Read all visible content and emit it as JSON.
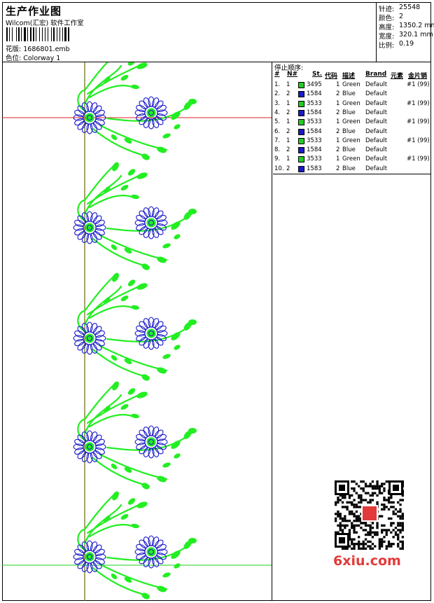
{
  "header": {
    "title": "生产作业图",
    "subtitle": "Wilcom(汇宏) 软件工作室",
    "design_label": "花版:",
    "design_value": "1686801.emb",
    "colorway_label": "色位:",
    "colorway_value": "Colorway 1"
  },
  "stats": [
    {
      "label": "针迹:",
      "value": "25548"
    },
    {
      "label": "颜色:",
      "value": "2"
    },
    {
      "label": "高度:",
      "value": "1350.2 mm"
    },
    {
      "label": "宽度:",
      "value": "320.1 mm"
    },
    {
      "label": "比例:",
      "value": "0.19"
    }
  ],
  "sequence": {
    "heading": "停止顺序:",
    "columns": [
      "#",
      "N#",
      "St.",
      "代码",
      "描述",
      "Brand",
      "元素",
      "金片销"
    ],
    "rows": [
      {
        "idx": "1.",
        "n": "1",
        "code": "3495",
        "st": "1",
        "desc": "Green",
        "brand": "Default",
        "extra": "#1 (99)",
        "color": "#22cc22"
      },
      {
        "idx": "2.",
        "n": "2",
        "code": "1584",
        "st": "2",
        "desc": "Blue",
        "brand": "Default",
        "extra": "",
        "color": "#1a1acc"
      },
      {
        "idx": "3.",
        "n": "1",
        "code": "3533",
        "st": "1",
        "desc": "Green",
        "brand": "Default",
        "extra": "#1 (99)",
        "color": "#22cc22"
      },
      {
        "idx": "4.",
        "n": "2",
        "code": "1584",
        "st": "2",
        "desc": "Blue",
        "brand": "Default",
        "extra": "",
        "color": "#1a1acc"
      },
      {
        "idx": "5.",
        "n": "1",
        "code": "3533",
        "st": "1",
        "desc": "Green",
        "brand": "Default",
        "extra": "#1 (99)",
        "color": "#22cc22"
      },
      {
        "idx": "6.",
        "n": "2",
        "code": "1584",
        "st": "2",
        "desc": "Blue",
        "brand": "Default",
        "extra": "",
        "color": "#1a1acc"
      },
      {
        "idx": "7.",
        "n": "1",
        "code": "3533",
        "st": "1",
        "desc": "Green",
        "brand": "Default",
        "extra": "#1 (99)",
        "color": "#22cc22"
      },
      {
        "idx": "8.",
        "n": "2",
        "code": "1584",
        "st": "2",
        "desc": "Blue",
        "brand": "Default",
        "extra": "",
        "color": "#1a1acc"
      },
      {
        "idx": "9.",
        "n": "1",
        "code": "3533",
        "st": "1",
        "desc": "Green",
        "brand": "Default",
        "extra": "#1 (99)",
        "color": "#22cc22"
      },
      {
        "idx": "10.",
        "n": "2",
        "code": "1583",
        "st": "2",
        "desc": "Blue",
        "brand": "Default",
        "extra": "",
        "color": "#1a1acc"
      }
    ]
  },
  "colors": {
    "green": "#22ee22",
    "blue": "#1a1acc",
    "red_line": "#dd2222",
    "green_line": "#22cc22",
    "axis": "#6b6b00"
  },
  "watermark": {
    "text": "6xiu.com"
  }
}
